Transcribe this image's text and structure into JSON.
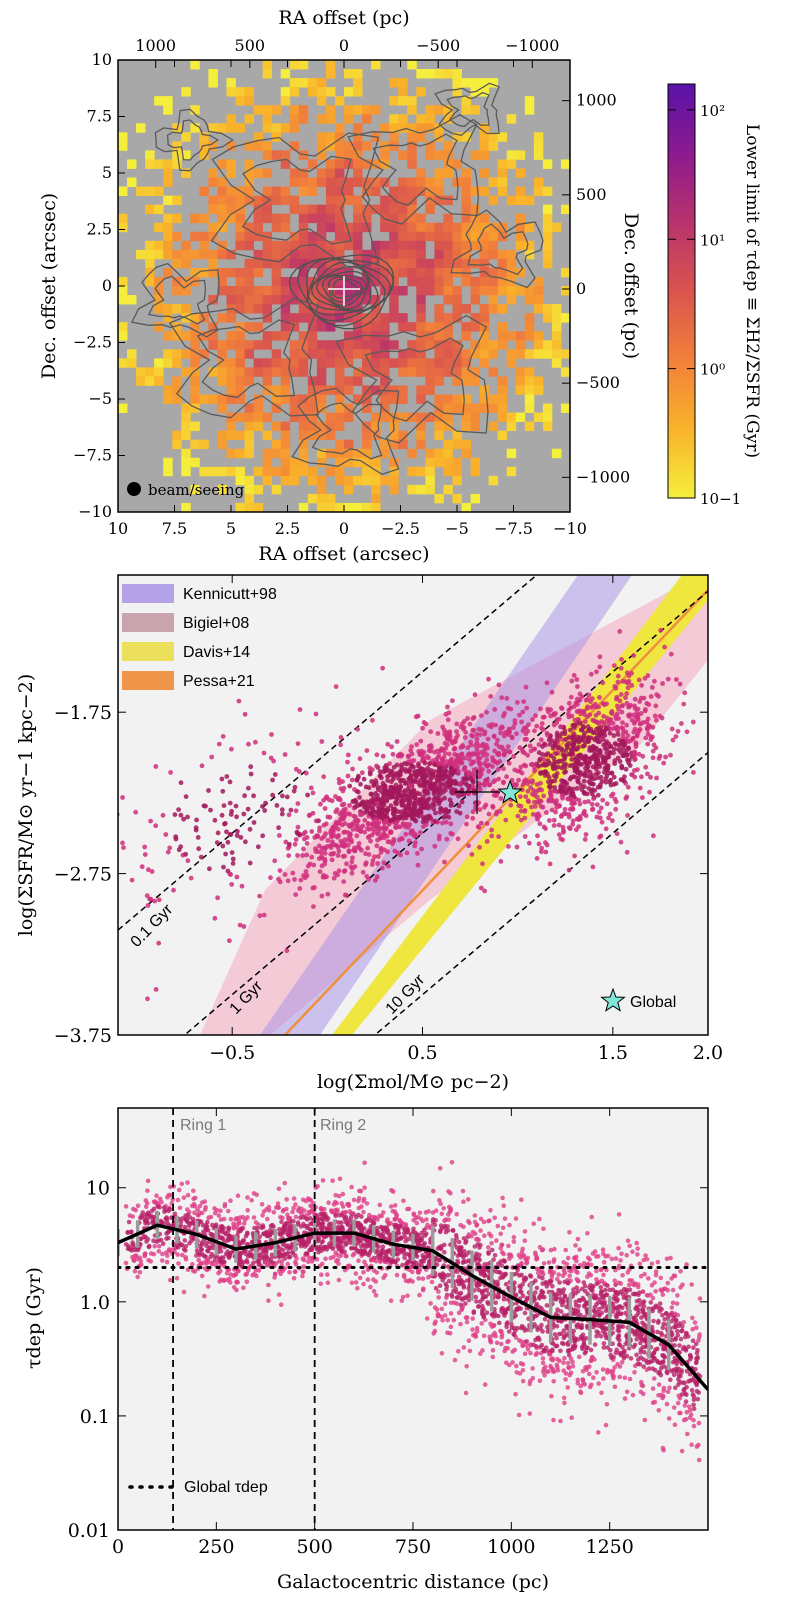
{
  "chart_data": [
    {
      "type": "heatmap",
      "name": "depletion time map",
      "xlabel_bottom": "RA offset (arcsec)",
      "xlabel_top": "RA offset (pc)",
      "ylabel_left": "Dec. offset (arcsec)",
      "ylabel_right": "Dec. offset (pc)",
      "xlim": [
        10,
        -10
      ],
      "ylim": [
        -10,
        10
      ],
      "x_ticks": [
        "10",
        "7.5",
        "5",
        "2.5",
        "0",
        "−2.5",
        "−5",
        "−7.5",
        "−10"
      ],
      "y_ticks": [
        "−10",
        "−7.5",
        "−5",
        "−2.5",
        "0",
        "2.5",
        "5",
        "7.5",
        "10"
      ],
      "top_ticks": [
        "1000",
        "500",
        "0",
        "−500",
        "−1000"
      ],
      "right_ticks": [
        "1000",
        "500",
        "0",
        "−500",
        "−1000"
      ],
      "colorbar": {
        "label": "Lower limit of τdep ≡ ΣH2/ΣSFR (Gyr)",
        "range": [
          0.1,
          100
        ],
        "scale": "log",
        "ticks": [
          "10−1",
          "10⁰",
          "10¹",
          "10²"
        ],
        "colors": [
          "#f5ef3c",
          "#f9b12a",
          "#f2813a",
          "#d9544e",
          "#b7326d",
          "#8d1a8f",
          "#5a13a8"
        ]
      },
      "beam_label": "beam/seeing"
    },
    {
      "type": "scatter",
      "name": "Kennicutt-Schmidt relation",
      "xlabel": "log(Σmol/M⊙ pc−2)",
      "ylabel": "log(ΣSFR/M⊙ yr−1 kpc−2)",
      "xlim": [
        -1.1,
        2.0
      ],
      "ylim": [
        -3.75,
        -0.9
      ],
      "x_ticks": [
        "−0.5",
        "0.5",
        "1.5",
        "2.0"
      ],
      "x_tick_values": [
        -0.5,
        0.5,
        1.5,
        2.0
      ],
      "y_ticks": [
        "−1.75",
        "−2.75",
        "−3.75"
      ],
      "y_tick_values": [
        -1.75,
        -2.75,
        -3.75
      ],
      "legend": [
        {
          "label": "Kennicutt+98",
          "color": "#b3a3e6"
        },
        {
          "label": "Bigiel+08",
          "color": "#c9a4ad"
        },
        {
          "label": "Davis+14",
          "color": "#ecdf5c"
        },
        {
          "label": "Pessa+21",
          "color": "#f0964a"
        }
      ],
      "depletion_lines": [
        {
          "label": "0.1 Gyr",
          "tdep_gyr": 0.1
        },
        {
          "label": "1 Gyr",
          "tdep_gyr": 1
        },
        {
          "label": "10 Gyr",
          "tdep_gyr": 10
        }
      ],
      "global_point": {
        "x": 0.96,
        "y": -2.25,
        "label": "Global"
      },
      "clusters": [
        {
          "x_center": 0.45,
          "y_center": -2.25,
          "x_spread": 0.3,
          "y_spread": 0.16,
          "count": 1300
        },
        {
          "x_center": 1.35,
          "y_center": -2.05,
          "x_spread": 0.22,
          "y_spread": 0.2,
          "count": 900
        },
        {
          "x_center": -0.45,
          "y_center": -2.4,
          "x_spread": 0.35,
          "y_spread": 0.3,
          "count": 180
        }
      ]
    },
    {
      "type": "scatter",
      "name": "Depletion time radial profile",
      "xlabel": "Galactocentric distance (pc)",
      "ylabel": "τdep (Gyr)",
      "xlim": [
        0,
        1500
      ],
      "ylim": [
        0.01,
        50
      ],
      "yscale": "log",
      "x_ticks": [
        "0",
        "250",
        "500",
        "750",
        "1000",
        "1250"
      ],
      "x_tick_values": [
        0,
        250,
        500,
        750,
        1000,
        1250
      ],
      "y_ticks": [
        "0.01",
        "0.1",
        "1.0",
        "10"
      ],
      "y_tick_values": [
        0.01,
        0.1,
        1,
        10
      ],
      "rings": [
        {
          "label": "Ring 1",
          "x": 140
        },
        {
          "label": "Ring 2",
          "x": 500
        }
      ],
      "global_tdep": 2.0,
      "legend_label": "Global τdep",
      "median_profile": {
        "x": [
          0,
          100,
          200,
          300,
          400,
          500,
          600,
          700,
          800,
          900,
          1000,
          1100,
          1200,
          1300,
          1400,
          1500
        ],
        "y": [
          3.3,
          4.7,
          3.9,
          2.9,
          3.3,
          4.0,
          4.0,
          3.2,
          2.8,
          1.7,
          1.1,
          0.73,
          0.7,
          0.66,
          0.42,
          0.17
        ]
      }
    }
  ]
}
